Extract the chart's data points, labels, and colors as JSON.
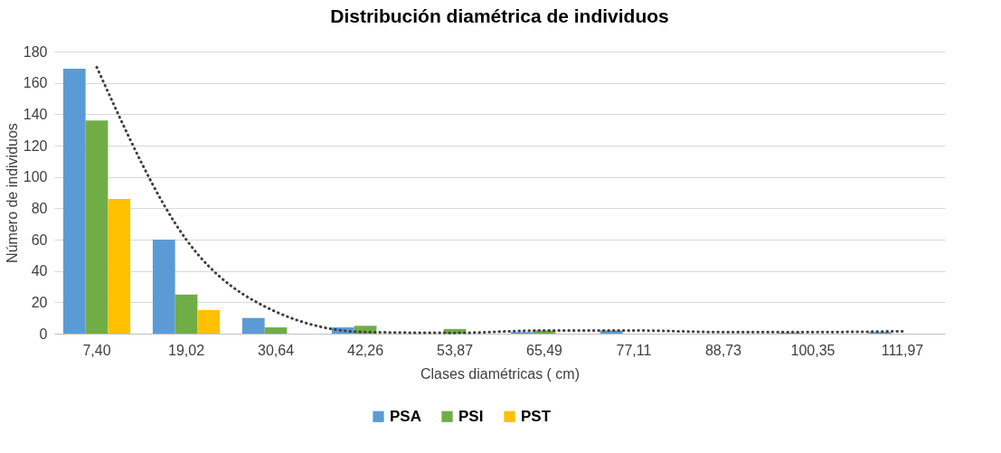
{
  "chart_data": {
    "type": "bar",
    "title": "Distribución diamétrica de individuos",
    "xlabel": "Clases diamétricas ( cm)",
    "ylabel": "Número de individuos",
    "categories": [
      "7,40",
      "19,02",
      "30,64",
      "42,26",
      "53,87",
      "65,49",
      "77,11",
      "88,73",
      "100,35",
      "111,97"
    ],
    "series": [
      {
        "name": "PSA",
        "color": "#5b9bd5",
        "values": [
          169,
          60,
          10,
          4,
          null,
          1,
          2,
          0,
          0.5,
          1
        ]
      },
      {
        "name": "PSI",
        "color": "#70ad47",
        "values": [
          136,
          25,
          4,
          5,
          3,
          2,
          0,
          0,
          0,
          0
        ]
      },
      {
        "name": "PST",
        "color": "#ffc000",
        "values": [
          86,
          15,
          0,
          0,
          0,
          0,
          0,
          0,
          0,
          0
        ]
      },
      {
        "type": "line",
        "color": "#404040",
        "line_style": "dotted",
        "values": [
          170,
          60,
          14,
          1,
          0.5,
          2,
          2,
          1,
          1,
          1.5
        ]
      }
    ],
    "ylim": [
      0,
      180
    ],
    "yticks": [
      0,
      20,
      40,
      60,
      80,
      100,
      120,
      140,
      160,
      180
    ],
    "grid": "y",
    "legend": "bottom"
  }
}
